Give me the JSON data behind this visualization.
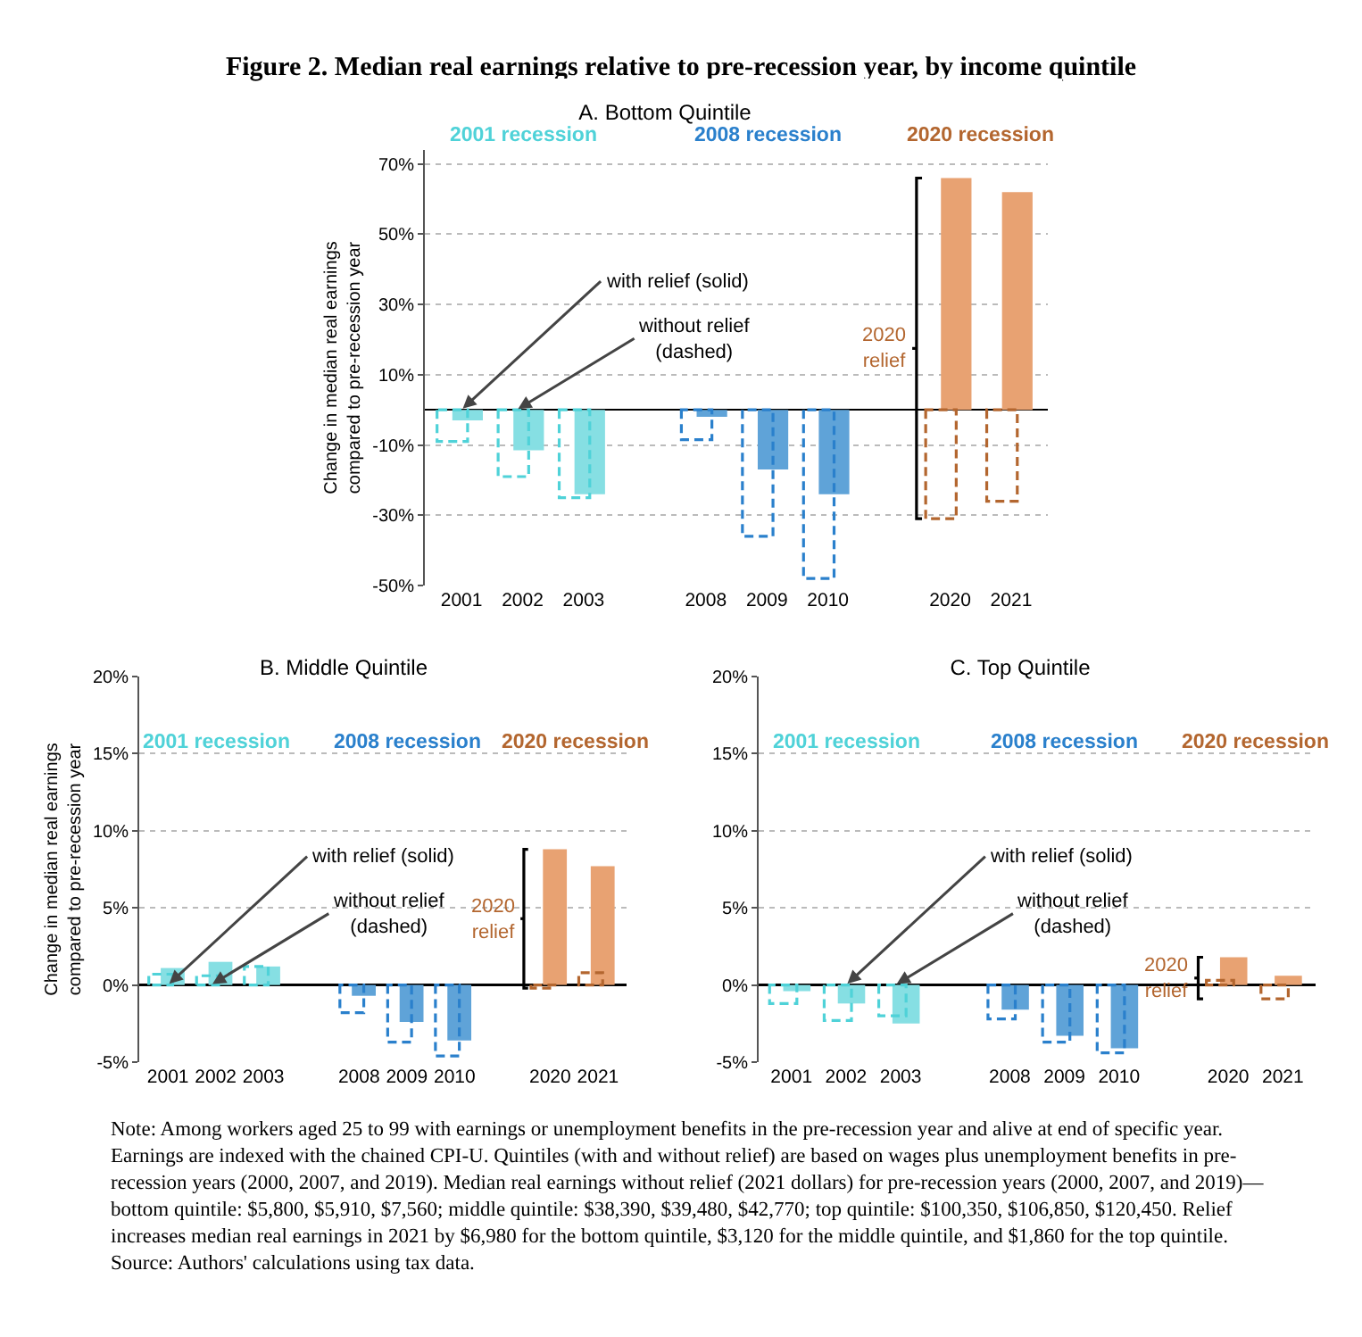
{
  "chart_data": [
    {
      "type": "bar",
      "title": "Figure 2. Median real earnings relative to pre-recession year, by income quintile",
      "subtitle": "A. Bottom Quintile",
      "ylabel": "Change in median real earnings compared to pre-recession year",
      "categories": [
        "2001",
        "2002",
        "2003",
        null,
        "2008",
        "2009",
        "2010",
        null,
        "2020",
        "2021"
      ],
      "series": [
        {
          "values": [
            -3,
            -11.5,
            -24,
            null,
            -2,
            -17,
            -24,
            null,
            66,
            62
          ],
          "colors": [
            "#86dfe3",
            "#86dfe3",
            "#86dfe3",
            "#86dfe3",
            "#5fa3d8",
            "#5fa3d8",
            "#5fa3d8",
            "#5fa3d8",
            "#e8a272",
            "#e8a272"
          ]
        },
        {
          "values": [
            -9,
            -19,
            -25,
            null,
            -8.5,
            -36,
            -48,
            null,
            -31,
            -26
          ],
          "colors": [
            "#4fd2d8",
            "#4fd2d8",
            "#4fd2d8",
            "#4fd2d8",
            "#2a80cc",
            "#2a80cc",
            "#2a80cc",
            "#2a80cc",
            "#b3662f",
            "#b3662f"
          ],
          "line_style": "dashed"
        }
      ],
      "ylim": [
        -50,
        74
      ],
      "yticks": [
        {
          "value": -50,
          "label": "-50%"
        },
        {
          "value": -30,
          "label": "-30%"
        },
        {
          "value": -10,
          "label": "-10%"
        },
        {
          "value": 10,
          "label": "10%"
        },
        {
          "value": 30,
          "label": "30%"
        },
        {
          "value": 50,
          "label": "50%"
        },
        {
          "value": 70,
          "label": "70%"
        }
      ],
      "grid": "y",
      "annotations": [
        "2001 recession",
        "2008 recession",
        "2020 recession",
        {
          "text": "with relief (solid)",
          "x": "2001",
          "y": 0
        },
        {
          "text": "without relief\n(dashed)",
          "x": "2002",
          "y": 0
        },
        "2020\nrelief"
      ]
    },
    {
      "type": "bar",
      "title": "B. Middle Quintile",
      "ylabel": "Change in median real earnings compared to pre-recession year",
      "categories": [
        "2001",
        "2002",
        "2003",
        null,
        "2008",
        "2009",
        "2010",
        null,
        "2020",
        "2021"
      ],
      "series": [
        {
          "values": [
            1.1,
            1.5,
            1.2,
            null,
            -0.7,
            -2.4,
            -3.6,
            null,
            8.8,
            7.7
          ],
          "colors": [
            "#86dfe3",
            "#86dfe3",
            "#86dfe3",
            "#86dfe3",
            "#5fa3d8",
            "#5fa3d8",
            "#5fa3d8",
            "#5fa3d8",
            "#e8a272",
            "#e8a272"
          ]
        },
        {
          "values": [
            0.7,
            0.6,
            1.2,
            null,
            -1.8,
            -3.7,
            -4.6,
            null,
            -0.2,
            0.8
          ],
          "colors": [
            "#4fd2d8",
            "#4fd2d8",
            "#4fd2d8",
            "#4fd2d8",
            "#2a80cc",
            "#2a80cc",
            "#2a80cc",
            "#2a80cc",
            "#b3662f",
            "#b3662f"
          ],
          "line_style": "dashed"
        }
      ],
      "ylim": [
        -5,
        20
      ],
      "yticks": [
        {
          "value": -5,
          "label": "-5%"
        },
        {
          "value": 0,
          "label": "0%"
        },
        {
          "value": 5,
          "label": "5%"
        },
        {
          "value": 10,
          "label": "10%"
        },
        {
          "value": 15,
          "label": "15%"
        },
        {
          "value": 20,
          "label": "20%"
        }
      ],
      "grid": "y",
      "annotations": [
        "2001 recession",
        "2008 recession",
        "2020 recession",
        {
          "text": "with relief (solid)",
          "x": "2001",
          "y": 0
        },
        {
          "text": "without relief\n(dashed)",
          "x": "2002",
          "y": 0
        },
        "2020\nrelief"
      ]
    },
    {
      "type": "bar",
      "title": "C. Top Quintile",
      "categories": [
        "2001",
        "2002",
        "2003",
        null,
        "2008",
        "2009",
        "2010",
        null,
        "2020",
        "2021"
      ],
      "series": [
        {
          "values": [
            -0.4,
            -1.2,
            -2.5,
            null,
            -1.6,
            -3.3,
            -4.1,
            null,
            1.8,
            0.6
          ],
          "colors": [
            "#86dfe3",
            "#86dfe3",
            "#86dfe3",
            "#86dfe3",
            "#5fa3d8",
            "#5fa3d8",
            "#5fa3d8",
            "#5fa3d8",
            "#e8a272",
            "#e8a272"
          ]
        },
        {
          "values": [
            -1.2,
            -2.3,
            -2.0,
            null,
            -2.2,
            -3.7,
            -4.4,
            null,
            0.3,
            -0.9
          ],
          "colors": [
            "#4fd2d8",
            "#4fd2d8",
            "#4fd2d8",
            "#4fd2d8",
            "#2a80cc",
            "#2a80cc",
            "#2a80cc",
            "#2a80cc",
            "#b3662f",
            "#b3662f"
          ],
          "line_style": "dashed"
        }
      ],
      "ylim": [
        -5,
        20
      ],
      "yticks": [
        {
          "value": -5,
          "label": "-5%"
        },
        {
          "value": 0,
          "label": "0%"
        },
        {
          "value": 5,
          "label": "5%"
        },
        {
          "value": 10,
          "label": "10%"
        },
        {
          "value": 15,
          "label": "15%"
        },
        {
          "value": 20,
          "label": "20%"
        }
      ],
      "grid": "y",
      "annotations": [
        "2001 recession",
        "2008 recession",
        "2020 recession",
        {
          "text": "with relief (solid)",
          "x": "2002",
          "y": 0
        },
        {
          "text": "without relief\n(dashed)",
          "x": "2003",
          "y": 0
        },
        "2020\nrelief",
        "Note: Among workers aged 25 to 99 with earnings or unemployment benefits in the pre-recession year and alive at end of specific year. Earnings are indexed with the chained CPI-U. Quintiles (with and without relief) are based on wages plus unemployment benefits in pre-recession years (2000, 2007, and 2019). Median real earnings without relief (2021 dollars) for pre-recession years (2000, 2007, and 2019)—bottom quintile: $5,800, $5,910, $7,560; middle quintile: $38,390, $39,480, $42,770; top quintile: $100,350, $106,850, $120,450. Relief increases median real earnings in 2021 by $6,980 for the bottom quintile, $3,120 for the middle quintile, and $1,860 for the top quintile. Source: Authors' calculations using tax data."
      ]
    }
  ]
}
